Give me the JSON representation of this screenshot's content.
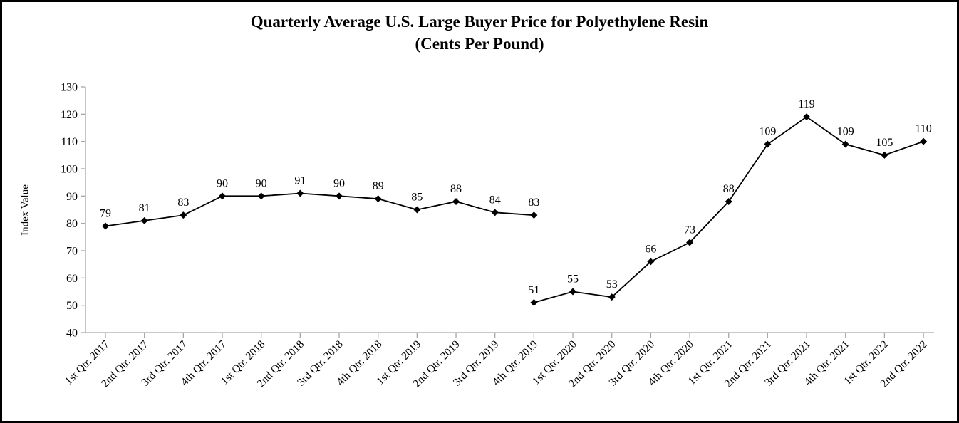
{
  "title": {
    "line1": "Quarterly Average U.S. Large Buyer Price for Polyethylene Resin",
    "line2": "(Cents Per Pound)"
  },
  "chart_data": {
    "type": "line",
    "title": "Quarterly Average U.S. Large Buyer Price for Polyethylene Resin (Cents Per Pound)",
    "xlabel": "",
    "ylabel": "Index Value",
    "ylim": [
      40,
      130
    ],
    "yticks": [
      40,
      50,
      60,
      70,
      80,
      90,
      100,
      110,
      120,
      130
    ],
    "grid": false,
    "legend": "none",
    "marker": "diamond",
    "line_color": "#000000",
    "axis_color": "#a6a6a6",
    "data_labels": true,
    "categories": [
      "1st Qtr. 2017",
      "2nd Qtr. 2017",
      "3rd Qtr. 2017",
      "4th Qtr. 2017",
      "1st Qtr. 2018",
      "2nd Qtr. 2018",
      "3rd Qtr. 2018",
      "4th Qtr. 2018",
      "1st Qtr. 2019",
      "2nd Qtr. 2019",
      "3rd Qtr. 2019",
      "4th Qtr. 2019",
      "1st Qtr. 2020",
      "2nd Qtr. 2020",
      "3rd Qtr. 2020",
      "4th Qtr. 2020",
      "1st Qtr. 2021",
      "2nd Qtr. 2021",
      "3rd Qtr. 2021",
      "4th Qtr. 2021",
      "1st Qtr. 2022",
      "2nd Qtr. 2022"
    ],
    "series": [
      {
        "name": "resin-price-segment-2017-2019",
        "start_index": 0,
        "values": [
          79,
          81,
          83,
          90,
          90,
          91,
          90,
          89,
          85,
          88,
          84,
          83
        ]
      },
      {
        "name": "resin-price-segment-2019-2022",
        "start_index": 11,
        "values": [
          51,
          55,
          53,
          66,
          73,
          88,
          109,
          119,
          109,
          105,
          110
        ]
      }
    ]
  }
}
